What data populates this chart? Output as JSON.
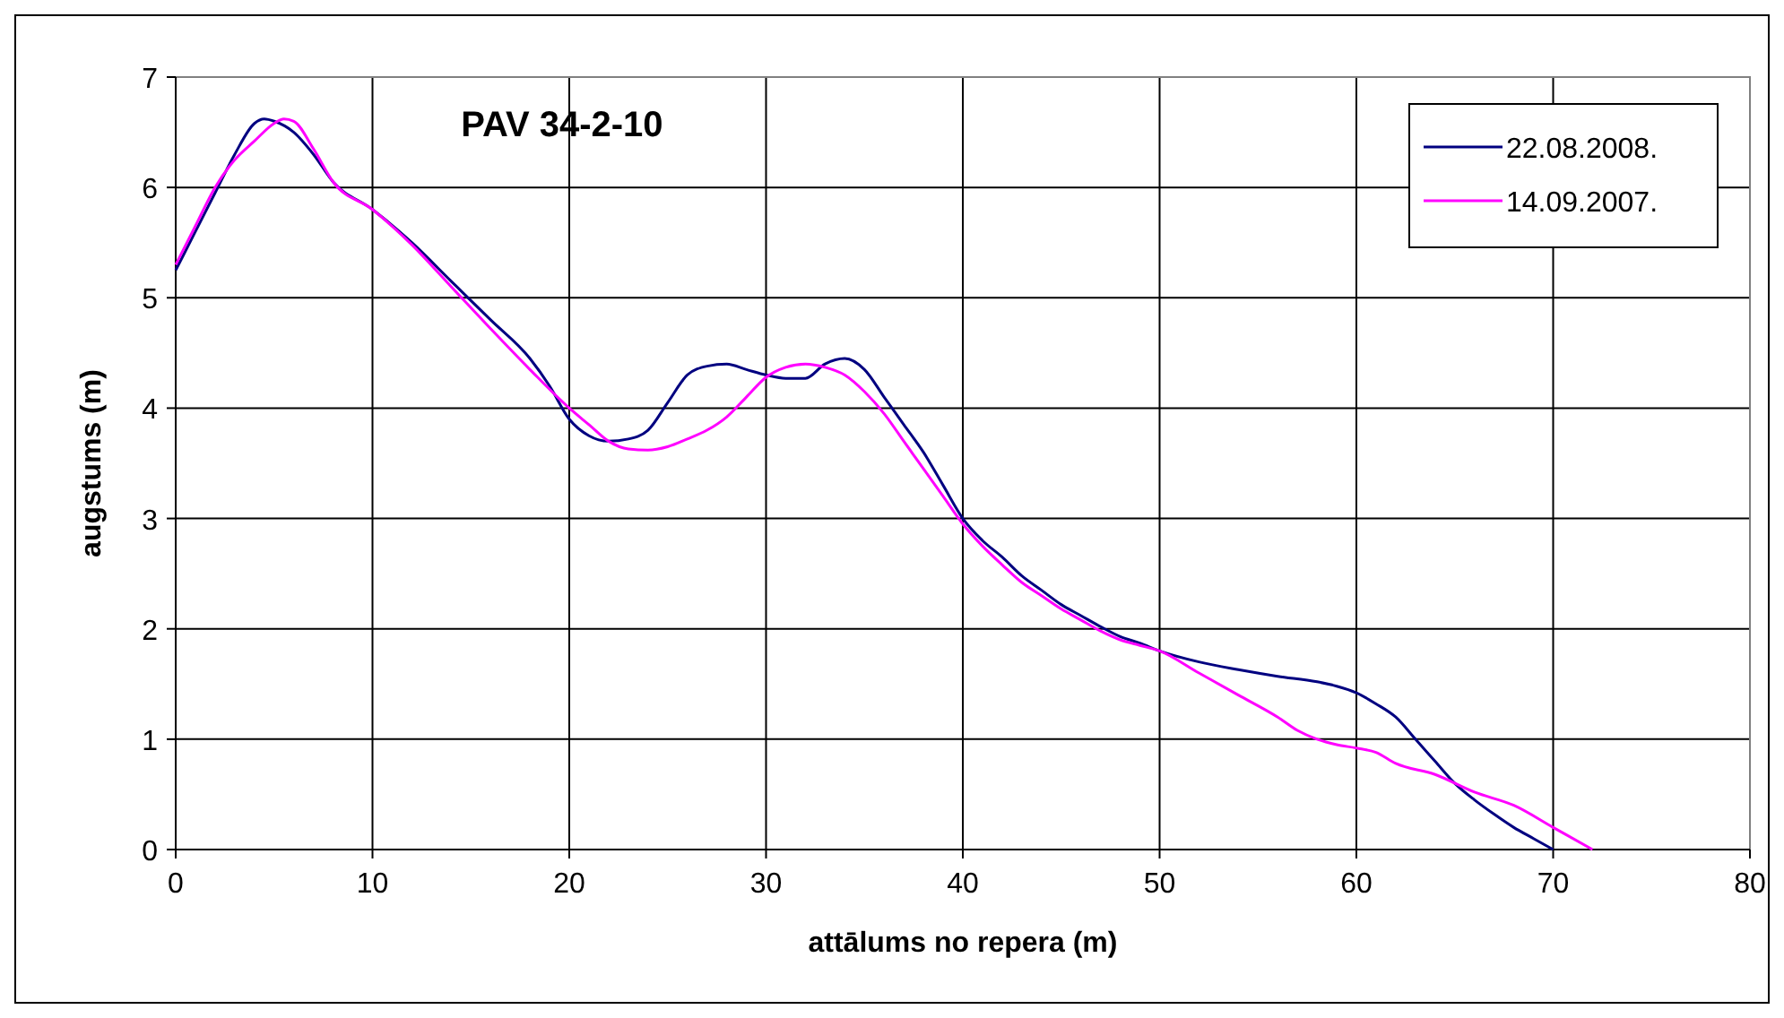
{
  "chart_data": {
    "type": "line",
    "title": "PAV 34-2-10",
    "xlabel": "attālums no repera (m)",
    "ylabel": "augstums (m)",
    "xlim": [
      0,
      80
    ],
    "xticks": [
      0,
      10,
      20,
      30,
      40,
      50,
      60,
      70,
      80
    ],
    "ylim": [
      0,
      7
    ],
    "yticks": [
      0,
      1,
      2,
      3,
      4,
      5,
      6,
      7
    ],
    "grid": true,
    "legend": "top right",
    "marker": "none",
    "line_style": "solid",
    "series": [
      {
        "name": "22.08.2008.",
        "color": "#000080",
        "x": [
          0,
          1,
          2,
          3,
          4,
          4.5,
          5,
          6,
          7,
          8,
          10,
          12,
          14,
          16,
          18,
          19,
          20,
          21,
          22,
          23,
          24,
          25,
          26,
          27,
          28,
          29,
          30,
          31,
          32,
          33,
          34,
          35,
          36,
          37,
          38,
          39,
          40,
          41,
          42,
          43,
          44,
          45,
          46,
          47,
          48,
          49,
          50,
          52,
          54,
          56,
          58,
          59,
          60,
          61,
          62,
          63,
          64,
          65,
          66,
          67,
          68,
          69,
          70
        ],
        "values": [
          5.25,
          5.6,
          5.95,
          6.3,
          6.58,
          6.62,
          6.6,
          6.5,
          6.3,
          6.05,
          5.8,
          5.5,
          5.15,
          4.8,
          4.45,
          4.2,
          3.9,
          3.75,
          3.7,
          3.72,
          3.8,
          4.05,
          4.3,
          4.38,
          4.4,
          4.35,
          4.3,
          4.27,
          4.27,
          4.4,
          4.45,
          4.35,
          4.1,
          3.85,
          3.6,
          3.3,
          3.0,
          2.8,
          2.65,
          2.48,
          2.35,
          2.22,
          2.12,
          2.02,
          1.93,
          1.87,
          1.8,
          1.7,
          1.63,
          1.57,
          1.52,
          1.48,
          1.42,
          1.32,
          1.2,
          1.0,
          0.8,
          0.6,
          0.45,
          0.32,
          0.2,
          0.1,
          0
        ]
      },
      {
        "name": "14.09.2007.",
        "color": "#ff00ff",
        "x": [
          0,
          1,
          2,
          3,
          4,
          5,
          5.5,
          6,
          7,
          8,
          10,
          12,
          14,
          16,
          18,
          20,
          21,
          22,
          23,
          24,
          25,
          26,
          27,
          28,
          29,
          30,
          31,
          32,
          33,
          34,
          35,
          36,
          37,
          38,
          39,
          40,
          41,
          42,
          43,
          44,
          45,
          46,
          47,
          48,
          49,
          50,
          52,
          54,
          56,
          57,
          58,
          59,
          60,
          61,
          62,
          64,
          66,
          68,
          70,
          72
        ],
        "values": [
          5.3,
          5.65,
          6.0,
          6.25,
          6.42,
          6.58,
          6.62,
          6.6,
          6.35,
          6.05,
          5.8,
          5.48,
          5.1,
          4.72,
          4.35,
          4.0,
          3.85,
          3.7,
          3.63,
          3.62,
          3.65,
          3.72,
          3.8,
          3.92,
          4.1,
          4.28,
          4.37,
          4.4,
          4.37,
          4.3,
          4.15,
          3.95,
          3.7,
          3.45,
          3.2,
          2.95,
          2.75,
          2.58,
          2.42,
          2.3,
          2.18,
          2.08,
          1.98,
          1.9,
          1.85,
          1.8,
          1.6,
          1.4,
          1.2,
          1.08,
          1.0,
          0.95,
          0.92,
          0.88,
          0.78,
          0.68,
          0.52,
          0.4,
          0.2,
          0
        ]
      }
    ]
  }
}
